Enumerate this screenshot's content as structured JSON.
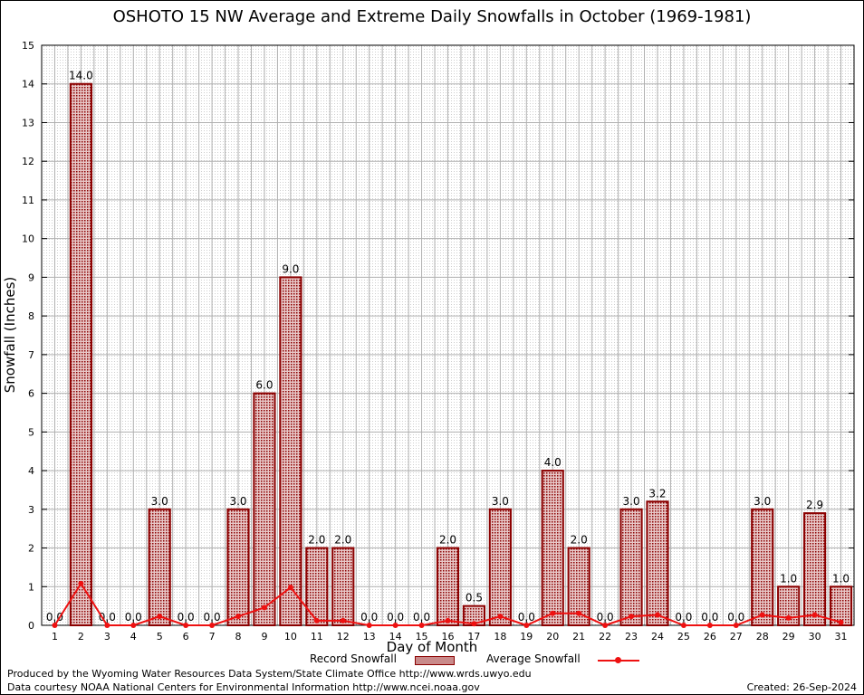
{
  "title": "OSHOTO 15 NW Average and Extreme Daily Snowfalls in October (1969-1981)",
  "footer": {
    "producer": "Produced by the Wyoming Water Resources Data System/State Climate Office http://www.wrds.uwyo.edu",
    "courtesy": "Data courtesy NOAA National Centers for Environmental Information http://www.ncei.noaa.gov",
    "created": "Created: 26-Sep-2024"
  },
  "colors": {
    "bar_fill": "#c98a8a",
    "bar_stroke": "#8b0000",
    "avg_line": "#ee1111",
    "grid": "#b0b0b0"
  },
  "chart_data": {
    "type": "bar",
    "title": "OSHOTO 15 NW Average and Extreme Daily Snowfalls in October (1969-1981)",
    "xlabel": "Day of Month",
    "ylabel": "Snowfall (Inches)",
    "ylim": [
      0,
      15
    ],
    "yticks": [
      "0",
      "1",
      "2",
      "3",
      "4",
      "5",
      "6",
      "7",
      "8",
      "9",
      "10",
      "11",
      "12",
      "13",
      "14",
      "15"
    ],
    "categories": [
      "1",
      "2",
      "3",
      "4",
      "5",
      "6",
      "7",
      "8",
      "9",
      "10",
      "11",
      "12",
      "13",
      "14",
      "15",
      "16",
      "17",
      "18",
      "19",
      "20",
      "21",
      "22",
      "23",
      "24",
      "25",
      "26",
      "27",
      "28",
      "29",
      "30",
      "31"
    ],
    "series": [
      {
        "name": "Record Snowfall",
        "type": "bar",
        "values": [
          0.0,
          14.0,
          0.0,
          0.0,
          3.0,
          0.0,
          0.0,
          3.0,
          6.0,
          9.0,
          2.0,
          2.0,
          0.0,
          0.0,
          0.0,
          2.0,
          0.5,
          3.0,
          0.0,
          4.0,
          2.0,
          0.0,
          3.0,
          3.2,
          0.0,
          0.0,
          0.0,
          3.0,
          1.0,
          2.9,
          1.0
        ],
        "labels": [
          "0.0",
          "14.0",
          "0.0",
          "0.0",
          "3.0",
          "0.0",
          "0.0",
          "3.0",
          "6.0",
          "9.0",
          "2.0",
          "2.0",
          "0.0",
          "0.0",
          "0.0",
          "2.0",
          "0.5",
          "3.0",
          "0.0",
          "4.0",
          "2.0",
          "0.0",
          "3.0",
          "3.2",
          "0.0",
          "0.0",
          "0.0",
          "3.0",
          "1.0",
          "2.9",
          "1.0"
        ]
      },
      {
        "name": "Average Snowfall",
        "type": "line",
        "values": [
          0.0,
          1.08,
          0.0,
          0.0,
          0.23,
          0.0,
          0.0,
          0.23,
          0.46,
          0.98,
          0.12,
          0.12,
          0.0,
          0.0,
          0.0,
          0.12,
          0.04,
          0.23,
          0.0,
          0.31,
          0.31,
          0.0,
          0.23,
          0.27,
          0.0,
          0.0,
          0.0,
          0.27,
          0.19,
          0.27,
          0.08
        ]
      }
    ],
    "grid": true,
    "legend": "bottom"
  }
}
